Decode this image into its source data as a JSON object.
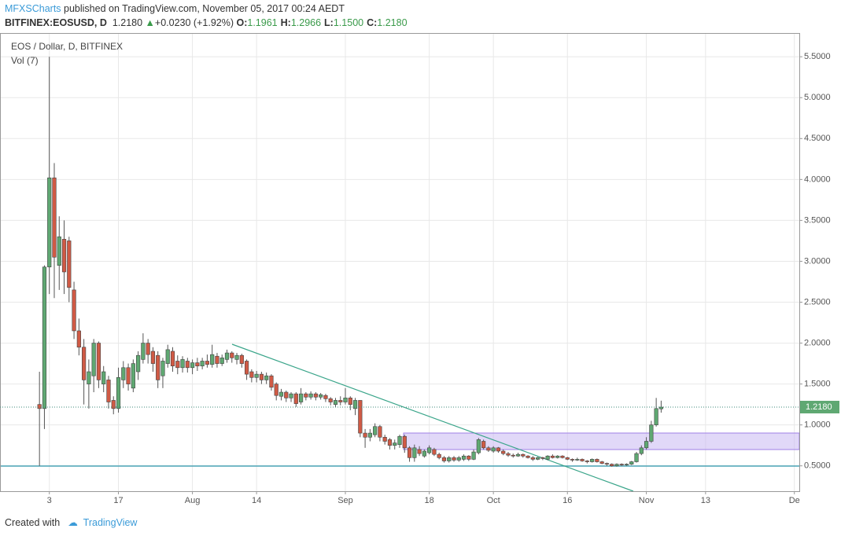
{
  "header": {
    "author": "MFXSCharts",
    "published": " published on TradingView.com, November 05, 2017 00:24 AEDT",
    "symbol": "BITFINEX:EOSUSD, D",
    "price": "1.2180",
    "change": "+0.0230 (+1.92%)",
    "ohlc": [
      {
        "key": "O:",
        "value": "1.1961"
      },
      {
        "key": "H:",
        "value": "1.2966"
      },
      {
        "key": "L:",
        "value": "1.1500"
      },
      {
        "key": "C:",
        "value": "1.2180"
      }
    ]
  },
  "footer": {
    "created": "Created with",
    "brand": "TradingView"
  },
  "chart_data": {
    "type": "candlestick",
    "title": "EOS / Dollar, D, BITFINEX",
    "subtitle": "Vol (7)",
    "up_color": "#5fa872",
    "down_color": "#d05a45",
    "grid": true,
    "last_price": {
      "value": 1.218,
      "label": "1.2180"
    },
    "x": [
      "2017-07-01",
      "2017-07-02",
      "2017-07-03",
      "2017-07-04",
      "2017-07-05",
      "2017-07-06",
      "2017-07-07",
      "2017-07-08",
      "2017-07-09",
      "2017-07-10",
      "2017-07-11",
      "2017-07-12",
      "2017-07-13",
      "2017-07-14",
      "2017-07-15",
      "2017-07-16",
      "2017-07-17",
      "2017-07-18",
      "2017-07-19",
      "2017-07-20",
      "2017-07-21",
      "2017-07-22",
      "2017-07-23",
      "2017-07-24",
      "2017-07-25",
      "2017-07-26",
      "2017-07-27",
      "2017-07-28",
      "2017-07-29",
      "2017-07-30",
      "2017-07-31",
      "2017-08-01",
      "2017-08-02",
      "2017-08-03",
      "2017-08-04",
      "2017-08-05",
      "2017-08-06",
      "2017-08-07",
      "2017-08-08",
      "2017-08-09",
      "2017-08-10",
      "2017-08-11",
      "2017-08-12",
      "2017-08-13",
      "2017-08-14",
      "2017-08-15",
      "2017-08-16",
      "2017-08-17",
      "2017-08-18",
      "2017-08-19",
      "2017-08-20",
      "2017-08-21",
      "2017-08-22",
      "2017-08-23",
      "2017-08-24",
      "2017-08-25",
      "2017-08-26",
      "2017-08-27",
      "2017-08-28",
      "2017-08-29",
      "2017-08-30",
      "2017-08-31",
      "2017-09-01",
      "2017-09-02",
      "2017-09-03",
      "2017-09-04",
      "2017-09-05",
      "2017-09-06",
      "2017-09-07",
      "2017-09-08",
      "2017-09-09",
      "2017-09-10",
      "2017-09-11",
      "2017-09-12",
      "2017-09-13",
      "2017-09-14",
      "2017-09-15",
      "2017-09-16",
      "2017-09-17",
      "2017-09-18",
      "2017-09-19",
      "2017-09-20",
      "2017-09-21",
      "2017-09-22",
      "2017-09-23",
      "2017-09-24",
      "2017-09-25",
      "2017-09-26",
      "2017-09-27",
      "2017-09-28",
      "2017-09-29",
      "2017-09-30",
      "2017-10-01",
      "2017-10-02",
      "2017-10-03",
      "2017-10-04",
      "2017-10-05",
      "2017-10-06",
      "2017-10-07",
      "2017-10-08",
      "2017-10-09",
      "2017-10-10",
      "2017-10-11",
      "2017-10-12",
      "2017-10-13",
      "2017-10-14",
      "2017-10-15",
      "2017-10-16",
      "2017-10-17",
      "2017-10-18",
      "2017-10-19",
      "2017-10-20",
      "2017-10-21",
      "2017-10-22",
      "2017-10-23",
      "2017-10-24",
      "2017-10-25",
      "2017-10-26",
      "2017-10-27",
      "2017-10-28",
      "2017-10-29",
      "2017-10-30",
      "2017-10-31",
      "2017-11-01",
      "2017-11-02",
      "2017-11-03",
      "2017-11-04"
    ],
    "open": [
      1.25,
      1.2,
      2.93,
      4.02,
      2.95,
      3.27,
      3.25,
      2.65,
      2.15,
      1.95,
      1.5,
      1.6,
      2.0,
      1.5,
      1.55,
      1.3,
      1.2,
      1.55,
      1.7,
      1.45,
      1.65,
      1.8,
      2.0,
      1.9,
      1.85,
      1.6,
      1.75,
      1.9,
      1.78,
      1.7,
      1.78,
      1.7,
      1.76,
      1.72,
      1.78,
      1.74,
      1.84,
      1.75,
      1.8,
      1.88,
      1.8,
      1.85,
      1.78,
      1.65,
      1.58,
      1.62,
      1.55,
      1.6,
      1.5,
      1.35,
      1.4,
      1.33,
      1.38,
      1.28,
      1.38,
      1.34,
      1.38,
      1.34,
      1.36,
      1.32,
      1.25,
      1.3,
      1.28,
      1.33,
      1.2,
      1.3,
      0.9,
      0.85,
      0.88,
      0.98,
      0.85,
      0.82,
      0.75,
      0.76,
      0.86,
      0.72,
      0.6,
      0.7,
      0.62,
      0.66,
      0.7,
      0.64,
      0.6,
      0.56,
      0.6,
      0.57,
      0.58,
      0.62,
      0.58,
      0.66,
      0.8,
      0.72,
      0.68,
      0.72,
      0.68,
      0.65,
      0.63,
      0.62,
      0.64,
      0.62,
      0.6,
      0.58,
      0.6,
      0.58,
      0.62,
      0.6,
      0.62,
      0.6,
      0.58,
      0.57,
      0.58,
      0.56,
      0.55,
      0.58,
      0.55,
      0.53,
      0.52,
      0.5,
      0.52,
      0.51,
      0.52,
      0.55,
      0.65,
      0.72,
      0.8,
      1.0,
      1.1961
    ],
    "high": [
      1.65,
      2.95,
      5.5,
      4.2,
      3.55,
      3.5,
      3.3,
      2.75,
      2.3,
      2.05,
      1.8,
      2.05,
      2.02,
      1.72,
      1.6,
      1.35,
      1.7,
      1.78,
      1.75,
      1.8,
      1.9,
      2.12,
      2.05,
      1.95,
      1.9,
      1.82,
      1.98,
      1.95,
      1.85,
      1.84,
      1.82,
      1.8,
      1.82,
      1.82,
      1.86,
      1.98,
      1.88,
      1.86,
      1.92,
      1.9,
      1.88,
      1.87,
      1.8,
      1.68,
      1.66,
      1.65,
      1.64,
      1.62,
      1.52,
      1.44,
      1.42,
      1.4,
      1.4,
      1.45,
      1.4,
      1.41,
      1.4,
      1.39,
      1.38,
      1.34,
      1.33,
      1.35,
      1.45,
      1.35,
      1.33,
      1.3,
      0.95,
      0.95,
      1.02,
      1.0,
      0.88,
      0.84,
      0.82,
      0.88,
      0.88,
      0.74,
      0.76,
      0.74,
      0.7,
      0.75,
      0.72,
      0.66,
      0.62,
      0.62,
      0.62,
      0.62,
      0.64,
      0.63,
      0.7,
      0.84,
      0.82,
      0.74,
      0.74,
      0.73,
      0.7,
      0.67,
      0.65,
      0.66,
      0.65,
      0.63,
      0.62,
      0.61,
      0.61,
      0.63,
      0.64,
      0.63,
      0.63,
      0.61,
      0.59,
      0.6,
      0.59,
      0.57,
      0.59,
      0.59,
      0.56,
      0.54,
      0.53,
      0.53,
      0.53,
      0.53,
      0.56,
      0.67,
      0.75,
      0.85,
      1.05,
      1.33,
      1.2966
    ],
    "low": [
      0.5,
      0.95,
      2.6,
      2.55,
      2.65,
      2.6,
      2.5,
      2.05,
      1.85,
      1.25,
      1.2,
      1.4,
      1.45,
      1.4,
      1.2,
      1.13,
      1.15,
      1.45,
      1.42,
      1.4,
      1.55,
      1.75,
      1.75,
      1.65,
      1.45,
      1.45,
      1.7,
      1.65,
      1.62,
      1.64,
      1.64,
      1.62,
      1.66,
      1.68,
      1.7,
      1.7,
      1.7,
      1.72,
      1.76,
      1.76,
      1.74,
      1.7,
      1.55,
      1.52,
      1.52,
      1.5,
      1.5,
      1.42,
      1.3,
      1.3,
      1.28,
      1.28,
      1.22,
      1.25,
      1.3,
      1.31,
      1.3,
      1.31,
      1.28,
      1.24,
      1.22,
      1.24,
      1.25,
      1.18,
      1.12,
      0.85,
      0.72,
      0.8,
      0.85,
      0.8,
      0.76,
      0.7,
      0.7,
      0.72,
      0.66,
      0.55,
      0.55,
      0.62,
      0.6,
      0.64,
      0.62,
      0.58,
      0.54,
      0.54,
      0.55,
      0.55,
      0.56,
      0.56,
      0.57,
      0.64,
      0.7,
      0.67,
      0.66,
      0.66,
      0.63,
      0.61,
      0.6,
      0.61,
      0.6,
      0.59,
      0.56,
      0.57,
      0.57,
      0.57,
      0.59,
      0.59,
      0.59,
      0.57,
      0.55,
      0.56,
      0.55,
      0.53,
      0.54,
      0.54,
      0.52,
      0.5,
      0.49,
      0.49,
      0.5,
      0.5,
      0.51,
      0.54,
      0.63,
      0.7,
      0.78,
      0.98,
      1.15
    ],
    "close": [
      1.2,
      2.93,
      4.02,
      3.05,
      3.3,
      2.87,
      2.68,
      2.15,
      1.95,
      1.55,
      1.65,
      2.0,
      1.55,
      1.65,
      1.28,
      1.2,
      1.58,
      1.7,
      1.5,
      1.75,
      1.85,
      2.0,
      1.86,
      1.75,
      1.55,
      1.78,
      1.92,
      1.72,
      1.7,
      1.8,
      1.7,
      1.76,
      1.72,
      1.78,
      1.74,
      1.86,
      1.75,
      1.82,
      1.88,
      1.82,
      1.85,
      1.75,
      1.62,
      1.58,
      1.62,
      1.55,
      1.6,
      1.46,
      1.36,
      1.4,
      1.33,
      1.38,
      1.26,
      1.38,
      1.34,
      1.38,
      1.34,
      1.37,
      1.32,
      1.28,
      1.3,
      1.28,
      1.33,
      1.25,
      1.3,
      0.9,
      0.85,
      0.9,
      0.98,
      0.85,
      0.8,
      0.75,
      0.78,
      0.86,
      0.72,
      0.6,
      0.72,
      0.65,
      0.68,
      0.72,
      0.64,
      0.6,
      0.56,
      0.6,
      0.57,
      0.6,
      0.62,
      0.58,
      0.67,
      0.82,
      0.72,
      0.69,
      0.72,
      0.68,
      0.65,
      0.63,
      0.62,
      0.64,
      0.62,
      0.6,
      0.58,
      0.6,
      0.59,
      0.62,
      0.6,
      0.62,
      0.6,
      0.58,
      0.57,
      0.58,
      0.56,
      0.55,
      0.58,
      0.55,
      0.53,
      0.52,
      0.5,
      0.52,
      0.51,
      0.52,
      0.55,
      0.65,
      0.72,
      0.8,
      1.0,
      1.2,
      1.218
    ],
    "ylim": [
      0.19,
      5.79
    ],
    "yticks": [
      {
        "value": 0.5,
        "label": "0.5000"
      },
      {
        "value": 1.0,
        "label": "1.0000"
      },
      {
        "value": 1.5,
        "label": "1.5000"
      },
      {
        "value": 2.0,
        "label": "2.0000"
      },
      {
        "value": 2.5,
        "label": "2.5000"
      },
      {
        "value": 3.0,
        "label": "3.0000"
      },
      {
        "value": 3.5,
        "label": "3.5000"
      },
      {
        "value": 4.0,
        "label": "4.0000"
      },
      {
        "value": 4.5,
        "label": "4.5000"
      },
      {
        "value": 5.0,
        "label": "5.0000"
      },
      {
        "value": 5.5,
        "label": "5.5000"
      }
    ],
    "xlim": [
      "2017-06-23",
      "2017-12-02"
    ],
    "xticks": [
      {
        "value": "2017-07-03",
        "label": "3"
      },
      {
        "value": "2017-07-17",
        "label": "17"
      },
      {
        "value": "2017-08-01",
        "label": "Aug"
      },
      {
        "value": "2017-08-14",
        "label": "14"
      },
      {
        "value": "2017-09-01",
        "label": "Sep"
      },
      {
        "value": "2017-09-18",
        "label": "18"
      },
      {
        "value": "2017-10-01",
        "label": "Oct"
      },
      {
        "value": "2017-10-16",
        "label": "16"
      },
      {
        "value": "2017-11-01",
        "label": "Nov"
      },
      {
        "value": "2017-11-13",
        "label": "13"
      },
      {
        "value": "2017-12-01",
        "label": "De"
      }
    ]
  }
}
